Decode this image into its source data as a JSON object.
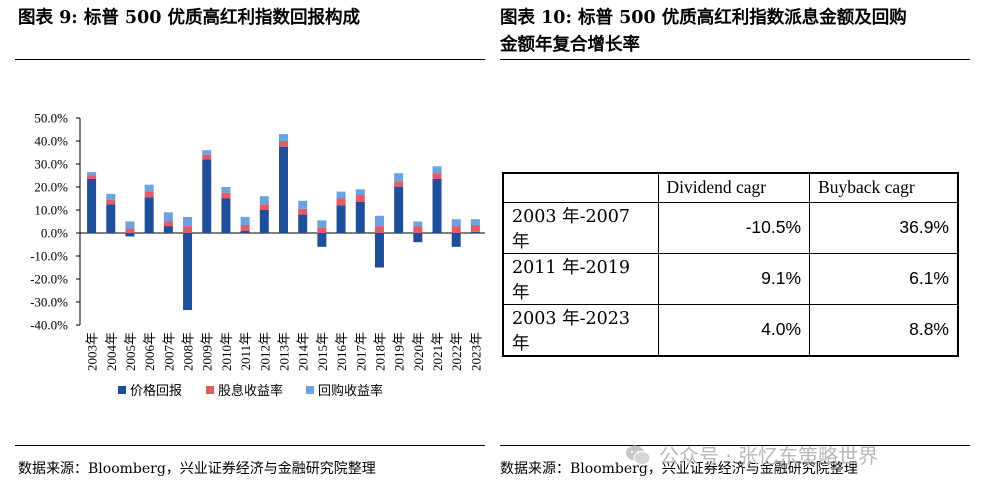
{
  "left_figure": {
    "title": "图表 9:  标普 500 优质高红利指数回报构成",
    "source": "数据来源：Bloomberg，兴业证券经济与金融研究院整理"
  },
  "right_figure": {
    "title_line1": "图表 10:   标普 500 优质高红利指数派息金额及回购",
    "title_line2": "金额年复合增长率",
    "source": "数据来源：Bloomberg，兴业证券经济与金融研究院整理"
  },
  "watermark": {
    "text": "公众号 · 张忆东策略世界",
    "icon": "wechat-icon"
  },
  "chart_data": {
    "type": "bar",
    "stacked": true,
    "categories": [
      "2003年",
      "2004年",
      "2005年",
      "2006年",
      "2007年",
      "2008年",
      "2009年",
      "2010年",
      "2011年",
      "2012年",
      "2013年",
      "2014年",
      "2015年",
      "2016年",
      "2017年",
      "2018年",
      "2019年",
      "2020年",
      "2021年",
      "2022年",
      "2023年"
    ],
    "series": [
      {
        "name": "价格回报",
        "color": "#1F4E9A",
        "values": [
          23.5,
          12.5,
          -1.5,
          15.5,
          3.0,
          -33.5,
          32.0,
          15.0,
          1.0,
          10.0,
          37.5,
          8.0,
          -6.0,
          12.0,
          13.5,
          -15.0,
          20.0,
          -4.0,
          23.5,
          -6.0,
          0.5
        ]
      },
      {
        "name": "股息收益率",
        "color": "#E35B63",
        "values": [
          1.5,
          2.0,
          2.0,
          2.5,
          2.0,
          3.0,
          2.0,
          2.5,
          2.5,
          2.5,
          2.5,
          2.5,
          2.5,
          3.0,
          3.0,
          3.0,
          2.5,
          3.0,
          2.5,
          3.0,
          3.0
        ]
      },
      {
        "name": "回购收益率",
        "color": "#6AA3DF",
        "values": [
          1.5,
          2.5,
          3.0,
          3.0,
          4.0,
          4.0,
          2.0,
          2.5,
          3.5,
          3.5,
          3.0,
          3.5,
          3.0,
          3.0,
          2.5,
          4.5,
          3.5,
          2.0,
          3.0,
          3.0,
          2.5
        ]
      }
    ],
    "yticks": [
      "50.0%",
      "40.0%",
      "30.0%",
      "20.0%",
      "10.0%",
      "0.0%",
      "-10.0%",
      "-20.0%",
      "-30.0%",
      "-40.0%"
    ],
    "ylim": [
      -40,
      50
    ],
    "legend_position": "bottom",
    "grid": false
  },
  "cagr_table": {
    "columns": [
      "",
      "Dividend cagr",
      "Buyback cagr"
    ],
    "rows": [
      {
        "period": "2003 年-2007 年",
        "dividend": "-10.5%",
        "buyback": "36.9%"
      },
      {
        "period": "2011 年-2019 年",
        "dividend": "9.1%",
        "buyback": "6.1%"
      },
      {
        "period": "2003 年-2023 年",
        "dividend": "4.0%",
        "buyback": "8.8%"
      }
    ]
  }
}
